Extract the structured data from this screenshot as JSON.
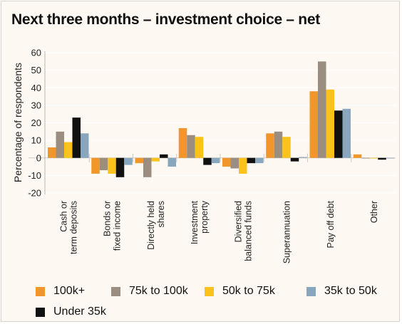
{
  "title": "Next three months – investment choice – net",
  "chart_data": {
    "type": "bar",
    "title": "Next three months – investment choice – net",
    "ylabel": "Percentage of respondents",
    "ylim": [
      -20,
      60
    ],
    "yticks": [
      60,
      50,
      40,
      30,
      20,
      10,
      0,
      -10,
      -20
    ],
    "categories": [
      [
        "Cash or",
        "term deposits"
      ],
      [
        "Bonds or",
        "fixed income"
      ],
      [
        "Directly held",
        "shares"
      ],
      [
        "Investment",
        "property"
      ],
      [
        "Diversified",
        "balanced funds"
      ],
      [
        "Superannuation"
      ],
      [
        "Pay off debt"
      ],
      [
        "Other"
      ]
    ],
    "series": [
      {
        "name": "100k+",
        "color": "#f0962b",
        "values": [
          6,
          -9,
          -3,
          17,
          -5,
          14,
          38,
          2
        ]
      },
      {
        "name": "75k to 100k",
        "color": "#9b8e80",
        "values": [
          15,
          -7,
          -11,
          13,
          -6,
          15,
          55,
          0
        ]
      },
      {
        "name": "50k to 75k",
        "color": "#fbc21c",
        "values": [
          9,
          -9,
          -2,
          12,
          -9,
          12,
          39,
          0
        ]
      },
      {
        "name": "Under 35k",
        "color": "#111111",
        "values": [
          23,
          -11,
          2,
          -4,
          -3,
          -2,
          27,
          -1
        ]
      },
      {
        "name": "35k to 50k",
        "color": "#89a6bf",
        "values": [
          14,
          -4,
          -5,
          -3,
          -3,
          0.5,
          28,
          0
        ]
      }
    ],
    "grid": false,
    "legend_placement": "bottom"
  },
  "legend": [
    {
      "name": "100k+",
      "color": "#f0962b"
    },
    {
      "name": "75k to 100k",
      "color": "#9b8e80"
    },
    {
      "name": "50k to 75k",
      "color": "#fbc21c"
    },
    {
      "name": "35k to 50k",
      "color": "#89a6bf"
    },
    {
      "name": "Under 35k",
      "color": "#111111"
    }
  ]
}
